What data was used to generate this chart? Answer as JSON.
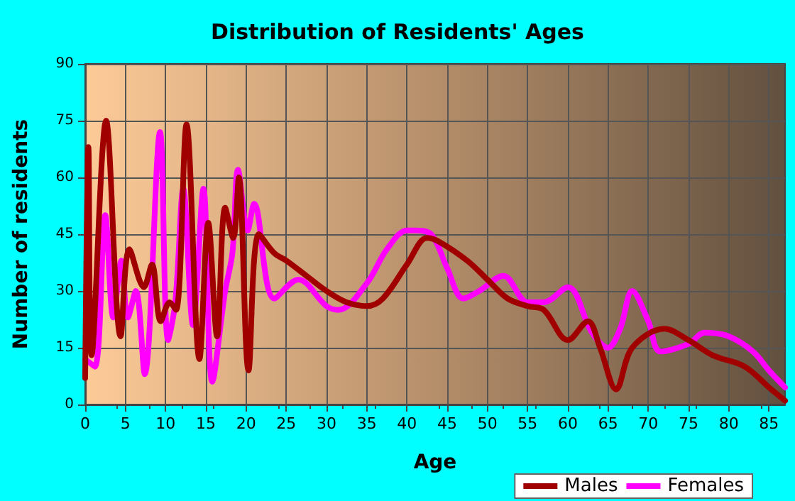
{
  "chart_data": {
    "type": "line",
    "title": "Distribution of Residents' Ages",
    "xlabel": "Age",
    "ylabel": "Number of residents",
    "xlim": [
      0,
      87
    ],
    "xticks": [
      0,
      5,
      10,
      15,
      20,
      25,
      30,
      35,
      40,
      45,
      50,
      55,
      60,
      65,
      70,
      75,
      80,
      85
    ],
    "ylim": [
      0,
      90
    ],
    "yticks": [
      0,
      15,
      30,
      45,
      60,
      75,
      90
    ],
    "grid": true,
    "legend": "bottom right",
    "marker": "none",
    "line_style": "solid",
    "series": [
      {
        "name": "Males",
        "color": "#a00000",
        "x": [
          0,
          0.4,
          0.8,
          2.6,
          4.4,
          5.5,
          7.3,
          8.3,
          9.4,
          10.5,
          11.3,
          12.6,
          14.2,
          15.3,
          16.4,
          17.4,
          18.4,
          19.1,
          20.3,
          21.6,
          23.5,
          25,
          27.5,
          30,
          32.5,
          35,
          37,
          40,
          42.5,
          44,
          47.5,
          50,
          52.5,
          55,
          57,
          60,
          62.5,
          64,
          66,
          68,
          72,
          75,
          78,
          82,
          85,
          87
        ],
        "values": [
          7,
          68,
          13,
          75,
          18,
          41,
          31,
          37,
          22,
          27,
          25,
          74,
          12,
          48,
          18,
          52,
          44,
          60,
          9,
          45,
          40,
          38,
          34,
          30,
          27,
          26,
          28,
          37,
          44,
          43,
          38,
          33,
          28,
          26,
          25,
          17,
          22,
          15,
          4,
          15,
          20,
          17,
          13,
          10,
          4.5,
          1
        ]
      },
      {
        "name": "Females",
        "color": "#ff00ff",
        "x": [
          0,
          1.2,
          2.5,
          3.5,
          4.5,
          5.3,
          6.3,
          7.4,
          9.3,
          10.3,
          11.2,
          12.2,
          13.4,
          14.7,
          15.8,
          17.4,
          18.3,
          19,
          20.2,
          21,
          23.5,
          26.5,
          30,
          31.5,
          35,
          37.5,
          40,
          41,
          43,
          45,
          47,
          49,
          52,
          55,
          57,
          60,
          63,
          65,
          66.5,
          68,
          70,
          71.5,
          75,
          77,
          80,
          83,
          85,
          87
        ],
        "values": [
          12,
          10,
          50,
          23,
          38,
          23,
          30,
          8,
          72,
          17,
          27,
          57,
          21,
          57,
          6,
          30,
          40,
          62,
          46,
          53,
          28,
          33,
          26,
          25,
          32,
          41,
          46,
          46,
          45,
          36,
          28,
          30,
          34,
          27,
          27,
          31,
          19,
          15,
          20,
          30,
          22,
          14,
          16,
          19,
          18,
          14,
          9,
          4.5
        ]
      }
    ]
  }
}
